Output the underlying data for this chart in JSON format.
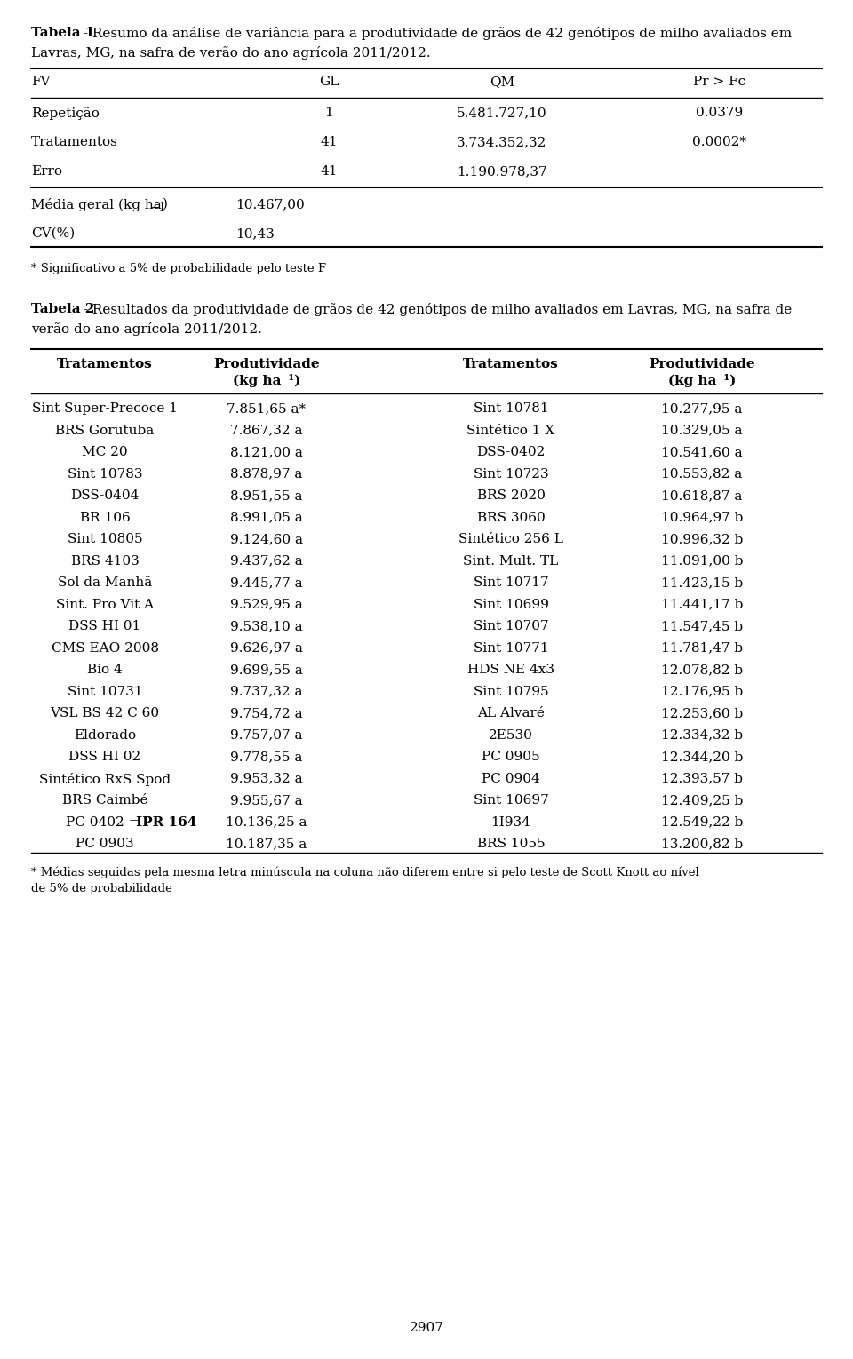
{
  "title1_bold": "Tabela 1",
  "title1_rest": " - Resumo da análise de variância para a produtividade de grãos de 42 genótipos de milho avaliados em",
  "title1_line2": "Lavras, MG, na safra de verão do ano agrícola 2011/2012.",
  "table1_headers": [
    "FV",
    "GL",
    "QM",
    "Pr > Fc"
  ],
  "table1_rows": [
    [
      "Repetição",
      "1",
      "5.481.727,10",
      "0.0379"
    ],
    [
      "Tratamentos",
      "41",
      "3.734.352,32",
      "0.0002*"
    ],
    [
      "Erro",
      "41",
      "1.190.978,37",
      ""
    ]
  ],
  "media_geral_value": "10.467,00",
  "cv_label": "CV(%)",
  "cv_value": "10,43",
  "footnote1": "* Significativo a 5% de probabilidade pelo teste F",
  "title2_bold": "Tabela 2",
  "title2_rest": " - Resultados da produtividade de grãos de 42 genótipos de milho avaliados em Lavras, MG, na safra de",
  "title2_line2": "verão do ano agrícola 2011/2012.",
  "table2_rows_left": [
    [
      "Sint Super-Precoce 1",
      "7.851,65 a*"
    ],
    [
      "BRS Gorutuba",
      "7.867,32 a"
    ],
    [
      "MC 20",
      "8.121,00 a"
    ],
    [
      "Sint 10783",
      "8.878,97 a"
    ],
    [
      "DSS-0404",
      "8.951,55 a"
    ],
    [
      "BR 106",
      "8.991,05 a"
    ],
    [
      "Sint 10805",
      "9.124,60 a"
    ],
    [
      "BRS 4103",
      "9.437,62 a"
    ],
    [
      "Sol da Manhã",
      "9.445,77 a"
    ],
    [
      "Sint. Pro Vit A",
      "9.529,95 a"
    ],
    [
      "DSS HI 01",
      "9.538,10 a"
    ],
    [
      "CMS EAO 2008",
      "9.626,97 a"
    ],
    [
      "Bio 4",
      "9.699,55 a"
    ],
    [
      "Sint 10731",
      "9.737,32 a"
    ],
    [
      "VSL BS 42 C 60",
      "9.754,72 a"
    ],
    [
      "Eldorado",
      "9.757,07 a"
    ],
    [
      "DSS HI 02",
      "9.778,55 a"
    ],
    [
      "Sintético RxS Spod",
      "9.953,32 a"
    ],
    [
      "BRS Caimbé",
      "9.955,67 a"
    ],
    [
      "PC 0402 = IPR 164",
      "10.136,25 a"
    ],
    [
      "PC 0903",
      "10.187,35 a"
    ]
  ],
  "table2_rows_right": [
    [
      "Sint 10781",
      "10.277,95 a"
    ],
    [
      "Sintético 1 X",
      "10.329,05 a"
    ],
    [
      "DSS-0402",
      "10.541,60 a"
    ],
    [
      "Sint 10723",
      "10.553,82 a"
    ],
    [
      "BRS 2020",
      "10.618,87 a"
    ],
    [
      "BRS 3060",
      "10.964,97 b"
    ],
    [
      "Sintético 256 L",
      "10.996,32 b"
    ],
    [
      "Sint. Mult. TL",
      "11.091,00 b"
    ],
    [
      "Sint 10717",
      "11.423,15 b"
    ],
    [
      "Sint 10699",
      "11.441,17 b"
    ],
    [
      "Sint 10707",
      "11.547,45 b"
    ],
    [
      "Sint 10771",
      "11.781,47 b"
    ],
    [
      "HDS NE 4x3",
      "12.078,82 b"
    ],
    [
      "Sint 10795",
      "12.176,95 b"
    ],
    [
      "AL Alvaré",
      "12.253,60 b"
    ],
    [
      "2E530",
      "12.334,32 b"
    ],
    [
      "PC 0905",
      "12.344,20 b"
    ],
    [
      "PC 0904",
      "12.393,57 b"
    ],
    [
      "Sint 10697",
      "12.409,25 b"
    ],
    [
      "1I934",
      "12.549,22 b"
    ],
    [
      "BRS 1055",
      "13.200,82 b"
    ]
  ],
  "footnote2": "* Médias seguidas pela mesma letra minúscula na coluna não diferem entre si pelo teste de Scott Knott ao nível",
  "footnote2_line2": "de 5% de probabilidade",
  "page_number": "2907",
  "font_size_body": 11.0,
  "font_size_small": 9.5,
  "background_color": "#ffffff",
  "text_color": "#000000"
}
